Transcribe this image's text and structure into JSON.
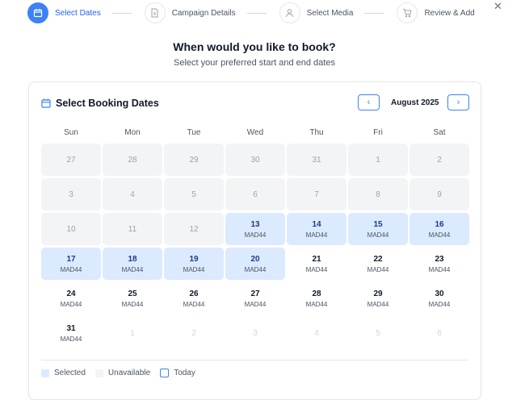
{
  "stepper": [
    {
      "label": "Select Dates",
      "icon": "calendar-icon",
      "active": true
    },
    {
      "label": "Campaign Details",
      "icon": "document-icon"
    },
    {
      "label": "Select Media",
      "icon": "user-icon"
    },
    {
      "label": "Review & Add",
      "icon": "cart-icon"
    }
  ],
  "heading": "When would you like to book?",
  "subheading": "Select your preferred start and end dates",
  "calendar": {
    "title": "Select Booking Dates",
    "month": "August 2025",
    "prev": "‹",
    "next": "›",
    "weekdays": [
      "Sun",
      "Mon",
      "Tue",
      "Wed",
      "Thu",
      "Fri",
      "Sat"
    ],
    "days": [
      {
        "n": "27",
        "s": "unavailable"
      },
      {
        "n": "28",
        "s": "unavailable"
      },
      {
        "n": "29",
        "s": "unavailable"
      },
      {
        "n": "30",
        "s": "unavailable"
      },
      {
        "n": "31",
        "s": "unavailable"
      },
      {
        "n": "1",
        "s": "unavailable"
      },
      {
        "n": "2",
        "s": "unavailable"
      },
      {
        "n": "3",
        "s": "unavailable"
      },
      {
        "n": "4",
        "s": "unavailable"
      },
      {
        "n": "5",
        "s": "unavailable"
      },
      {
        "n": "6",
        "s": "unavailable"
      },
      {
        "n": "7",
        "s": "unavailable"
      },
      {
        "n": "8",
        "s": "unavailable"
      },
      {
        "n": "9",
        "s": "unavailable"
      },
      {
        "n": "10",
        "s": "unavailable"
      },
      {
        "n": "11",
        "s": "unavailable"
      },
      {
        "n": "12",
        "s": "unavailable"
      },
      {
        "n": "13",
        "s": "selected",
        "p": "MAD44"
      },
      {
        "n": "14",
        "s": "selected",
        "p": "MAD44"
      },
      {
        "n": "15",
        "s": "selected",
        "p": "MAD44"
      },
      {
        "n": "16",
        "s": "selected",
        "p": "MAD44"
      },
      {
        "n": "17",
        "s": "selected",
        "p": "MAD44"
      },
      {
        "n": "18",
        "s": "selected",
        "p": "MAD44"
      },
      {
        "n": "19",
        "s": "selected",
        "p": "MAD44"
      },
      {
        "n": "20",
        "s": "selected",
        "p": "MAD44"
      },
      {
        "n": "21",
        "s": "available",
        "p": "MAD44"
      },
      {
        "n": "22",
        "s": "available",
        "p": "MAD44"
      },
      {
        "n": "23",
        "s": "available",
        "p": "MAD44"
      },
      {
        "n": "24",
        "s": "available",
        "p": "MAD44"
      },
      {
        "n": "25",
        "s": "available",
        "p": "MAD44"
      },
      {
        "n": "26",
        "s": "available",
        "p": "MAD44"
      },
      {
        "n": "27",
        "s": "available",
        "p": "MAD44"
      },
      {
        "n": "28",
        "s": "available",
        "p": "MAD44"
      },
      {
        "n": "29",
        "s": "available",
        "p": "MAD44"
      },
      {
        "n": "30",
        "s": "available",
        "p": "MAD44"
      },
      {
        "n": "31",
        "s": "available",
        "p": "MAD44"
      },
      {
        "n": "1",
        "s": "outside"
      },
      {
        "n": "2",
        "s": "outside"
      },
      {
        "n": "3",
        "s": "outside"
      },
      {
        "n": "4",
        "s": "outside"
      },
      {
        "n": "5",
        "s": "outside"
      },
      {
        "n": "6",
        "s": "outside"
      }
    ]
  },
  "legend": {
    "selected": "Selected",
    "unavailable": "Unavailable",
    "today": "Today"
  },
  "colors": {
    "accent": "#3b82f6",
    "selected": "#dbeafe",
    "unavailable": "#f3f4f6"
  }
}
